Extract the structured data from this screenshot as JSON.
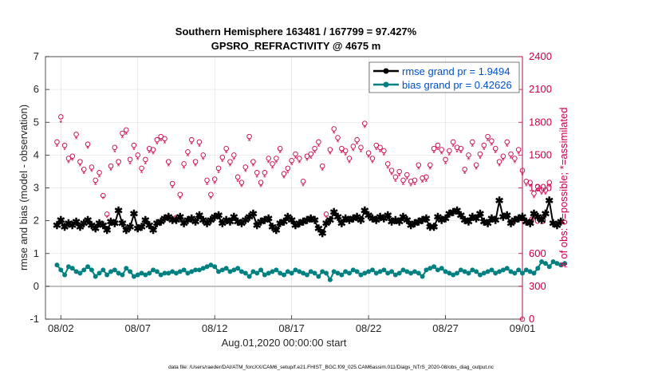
{
  "chart_data": {
    "type": "line",
    "title": [
      "Southern Hemisphere 163481 / 167799 = 97.427%",
      "GPSRO_REFRACTIVITY @ 4675 m"
    ],
    "xlabel": "Aug.01,2020 00:00:00 start",
    "ylabel": "rmse and bias (model - observation)",
    "ylabel_right": "# of obs: o=possible; *=assimilated",
    "ylim": [
      -1,
      7
    ],
    "ylim_right": [
      0,
      2400
    ],
    "xlim_days": [
      0,
      31
    ],
    "x_tick_labels": [
      "08/02",
      "08/07",
      "08/12",
      "08/17",
      "08/22",
      "08/27",
      "09/01"
    ],
    "x_tick_days": [
      1,
      6,
      11,
      16,
      21,
      26,
      31
    ],
    "y_ticks": [
      -1,
      0,
      1,
      2,
      3,
      4,
      5,
      6,
      7
    ],
    "y_ticks_right": [
      0,
      300,
      600,
      900,
      1200,
      1500,
      1800,
      2100,
      2400
    ],
    "grid": true,
    "legend_position": "top-right",
    "legend": [
      {
        "label": "rmse grand pr = 1.9494",
        "color": "#000000"
      },
      {
        "label": "bias grand pr = 0.42626",
        "color": "#008080"
      }
    ],
    "footnote": "data file: /Users/raeder/DAI/ATM_forcXX/CAM6_setup/f.e21.FHIST_BGC.f09_025.CAM6assim.011/Diags_NTrS_2020-08/obs_diag_output.nc",
    "interval_days": 0.25,
    "series": [
      {
        "name": "rmse",
        "axis": "left",
        "color": "#000000",
        "values": [
          1.85,
          2.0,
          1.8,
          1.9,
          1.85,
          1.95,
          1.8,
          1.9,
          2.0,
          1.85,
          1.75,
          1.9,
          1.85,
          1.7,
          1.95,
          1.9,
          2.3,
          1.9,
          1.7,
          1.8,
          2.2,
          1.75,
          1.8,
          2.0,
          1.85,
          1.7,
          1.9,
          1.95,
          2.05,
          2.1,
          2.0,
          2.0,
          2.1,
          1.9,
          2.0,
          2.05,
          1.95,
          2.15,
          2.0,
          1.9,
          2.0,
          2.1,
          2.15,
          1.9,
          2.0,
          1.95,
          2.1,
          1.95,
          1.9,
          2.0,
          2.1,
          2.2,
          1.85,
          1.95,
          2.0,
          2.05,
          1.8,
          1.7,
          1.9,
          1.95,
          2.1,
          2.0,
          1.85,
          1.9,
          1.95,
          2.0,
          2.05,
          2.0,
          1.75,
          1.6,
          1.9,
          2.0,
          2.25,
          2.1,
          1.9,
          2.05,
          2.0,
          2.05,
          2.1,
          2.0,
          2.3,
          2.15,
          2.05,
          2.0,
          2.1,
          2.05,
          2.15,
          1.95,
          2.0,
          1.95,
          2.1,
          2.0,
          1.85,
          1.9,
          1.95,
          2.0,
          2.05,
          1.8,
          1.8,
          2.1,
          2.0,
          2.05,
          2.2,
          2.25,
          2.3,
          2.15,
          2.0,
          1.95,
          2.1,
          2.05,
          2.2,
          1.95,
          1.9,
          2.05,
          2.0,
          2.6,
          2.1,
          2.15,
          1.9,
          2.0,
          2.05,
          2.1,
          1.95,
          1.9,
          2.2,
          2.1,
          2.0,
          2.2,
          2.6,
          1.9,
          1.85,
          1.95
        ]
      },
      {
        "name": "bias",
        "axis": "left",
        "color": "#008080",
        "values": [
          0.65,
          0.5,
          0.35,
          0.6,
          0.55,
          0.45,
          0.4,
          0.5,
          0.6,
          0.5,
          0.3,
          0.4,
          0.5,
          0.35,
          0.45,
          0.5,
          0.4,
          0.35,
          0.55,
          0.45,
          0.3,
          0.35,
          0.4,
          0.35,
          0.4,
          0.5,
          0.45,
          0.35,
          0.4,
          0.4,
          0.45,
          0.4,
          0.45,
          0.5,
          0.4,
          0.45,
          0.5,
          0.5,
          0.55,
          0.6,
          0.65,
          0.6,
          0.45,
          0.5,
          0.55,
          0.45,
          0.5,
          0.55,
          0.45,
          0.4,
          0.3,
          0.45,
          0.4,
          0.5,
          0.35,
          0.4,
          0.45,
          0.5,
          0.4,
          0.35,
          0.45,
          0.4,
          0.5,
          0.45,
          0.4,
          0.35,
          0.45,
          0.4,
          0.3,
          0.45,
          0.4,
          0.2,
          0.45,
          0.4,
          0.35,
          0.45,
          0.4,
          0.5,
          0.45,
          0.35,
          0.4,
          0.45,
          0.5,
          0.4,
          0.45,
          0.5,
          0.4,
          0.45,
          0.35,
          0.4,
          0.5,
          0.45,
          0.4,
          0.45,
          0.4,
          0.3,
          0.5,
          0.55,
          0.6,
          0.5,
          0.55,
          0.45,
          0.4,
          0.35,
          0.4,
          0.5,
          0.45,
          0.4,
          0.5,
          0.45,
          0.35,
          0.4,
          0.45,
          0.5,
          0.4,
          0.45,
          0.5,
          0.55,
          0.45,
          0.4,
          0.5,
          0.4,
          0.5,
          0.45,
          0.4,
          0.55,
          0.75,
          0.7,
          0.6,
          0.75,
          0.7,
          0.65,
          0.7
        ]
      },
      {
        "name": "obs possible",
        "axis": "right",
        "marker": "o",
        "color": "#c8004c",
        "values": [
          1620,
          1850,
          1590,
          1470,
          1490,
          1690,
          1440,
          1370,
          1600,
          1390,
          1270,
          1340,
          1130,
          960,
          1400,
          1570,
          1440,
          1700,
          1730,
          1460,
          1590,
          1500,
          1380,
          1460,
          1560,
          1550,
          1640,
          1670,
          1650,
          1440,
          1240,
          930,
          1140,
          1420,
          1530,
          1640,
          1440,
          1620,
          1500,
          1270,
          1140,
          1280,
          1380,
          1480,
          1560,
          1440,
          1500,
          1300,
          1250,
          1390,
          1670,
          1440,
          1340,
          1250,
          1340,
          1470,
          1420,
          1470,
          1560,
          1330,
          1380,
          1450,
          1510,
          1470,
          1260,
          1490,
          1510,
          1560,
          1620,
          1400,
          960,
          1550,
          1740,
          1660,
          1560,
          1540,
          1470,
          1580,
          1640,
          1570,
          1790,
          1520,
          1470,
          1590,
          1570,
          1540,
          1420,
          1360,
          1300,
          1350,
          1270,
          1320,
          1260,
          1270,
          1410,
          1290,
          1300,
          1410,
          1560,
          1590,
          1550,
          1460,
          1540,
          1620,
          1570,
          1560,
          1370,
          1500,
          1620,
          1410,
          1510,
          1590,
          1670,
          1630,
          1560,
          1440,
          1490,
          1620,
          1510,
          1470,
          1550,
          1360,
          1260,
          1250,
          1150,
          1210,
          1180,
          1180,
          1250
        ]
      },
      {
        "name": "obs assimilated",
        "axis": "right",
        "marker": "*",
        "color": "#c8004c",
        "values": [
          1580,
          1800,
          1550,
          1430,
          1450,
          1650,
          1400,
          1330,
          1560,
          1350,
          1230,
          1300,
          1100,
          930,
          1360,
          1530,
          1400,
          1660,
          1690,
          1420,
          1550,
          1460,
          1340,
          1420,
          1520,
          1510,
          1600,
          1630,
          1610,
          1400,
          1200,
          900,
          1100,
          1380,
          1490,
          1600,
          1400,
          1580,
          1460,
          1230,
          1100,
          1240,
          1340,
          1440,
          1520,
          1400,
          1460,
          1260,
          1210,
          1350,
          1630,
          1400,
          1300,
          1210,
          1300,
          1430,
          1380,
          1430,
          1520,
          1290,
          1340,
          1410,
          1470,
          1430,
          1220,
          1450,
          1470,
          1520,
          1580,
          1360,
          930,
          1510,
          1700,
          1620,
          1520,
          1500,
          1430,
          1540,
          1600,
          1530,
          1750,
          1480,
          1430,
          1550,
          1530,
          1500,
          1380,
          1320,
          1260,
          1310,
          1230,
          1280,
          1220,
          1230,
          1370,
          1250,
          1260,
          1370,
          1520,
          1550,
          1510,
          1420,
          1500,
          1580,
          1530,
          1520,
          1330,
          1460,
          1580,
          1370,
          1470,
          1550,
          1630,
          1590,
          1520,
          1400,
          1450,
          1580,
          1470,
          1430,
          1510,
          1320,
          1220,
          1210,
          1110,
          1170,
          1140,
          1140,
          1210
        ]
      }
    ]
  }
}
